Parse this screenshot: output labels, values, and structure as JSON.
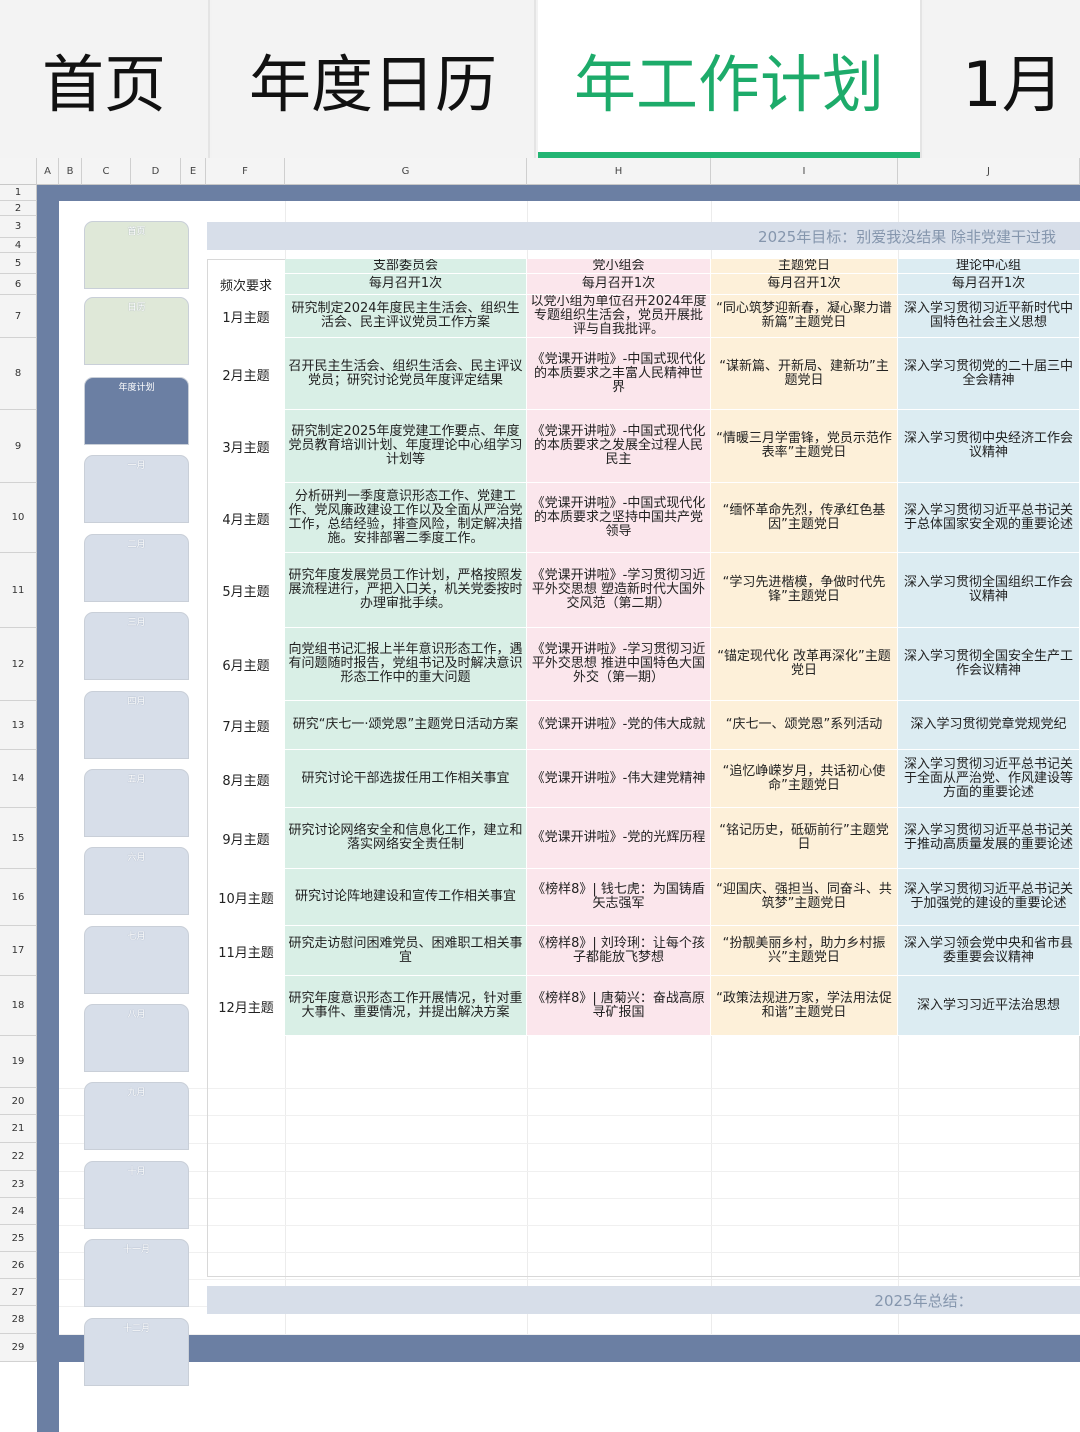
{
  "tabs": [
    {
      "label": "首页",
      "active": false
    },
    {
      "label": "年度日历",
      "active": false
    },
    {
      "label": "年工作计划",
      "active": true
    },
    {
      "label": "1月",
      "active": false
    }
  ],
  "accent_color": "#22b573",
  "column_headers": [
    "A",
    "B",
    "C",
    "D",
    "E",
    "F",
    "G",
    "H",
    "I",
    "J"
  ],
  "row_numbers": [
    "1",
    "2",
    "3",
    "4",
    "5",
    "6",
    "7",
    "8",
    "9",
    "10",
    "11",
    "12",
    "13",
    "14",
    "15",
    "16",
    "17",
    "18",
    "19",
    "20",
    "21",
    "22",
    "23",
    "24",
    "25",
    "26",
    "27",
    "28",
    "29"
  ],
  "nav_buttons": [
    {
      "label": "首页",
      "style": "green"
    },
    {
      "label": "日历",
      "style": "green"
    },
    {
      "label": "年度计划",
      "style": "active"
    },
    {
      "label": "一月",
      "style": "light"
    },
    {
      "label": "二月",
      "style": "light"
    },
    {
      "label": "三月",
      "style": "light"
    },
    {
      "label": "四月",
      "style": "light"
    },
    {
      "label": "五月",
      "style": "light"
    },
    {
      "label": "六月",
      "style": "light"
    },
    {
      "label": "七月",
      "style": "light"
    },
    {
      "label": "八月",
      "style": "light"
    },
    {
      "label": "九月",
      "style": "light"
    },
    {
      "label": "十月",
      "style": "light"
    },
    {
      "label": "十一月",
      "style": "light"
    },
    {
      "label": "十二月",
      "style": "light"
    }
  ],
  "goal_banner": "2025年目标：别爱我没结果 除非党建干过我",
  "summary_banner": "2025年总结：",
  "plan_table": {
    "frequency_label": "频次要求",
    "columns": [
      {
        "name": "支部委员会",
        "frequency": "每月召开1次",
        "color": "#d9efe6"
      },
      {
        "name": "党小组会",
        "frequency": "每月召开1次",
        "color": "#fbe6ec"
      },
      {
        "name": "主题党日",
        "frequency": "每月召开1次",
        "color": "#fdf0d9"
      },
      {
        "name": "理论中心组",
        "frequency": "每月召开1次",
        "color": "#dcecf2"
      }
    ],
    "rows": [
      {
        "month": "1月主题",
        "cells": [
          "研究制定2024年度民主生活会、组织生活会、民主评议党员工作方案",
          "以党小组为单位召开2024年度专题组织生活会，党员开展批评与自我批评。",
          "“同心筑梦迎新春，凝心聚力谱新篇”主题党日",
          "深入学习贯彻习近平新时代中国特色社会主义思想"
        ]
      },
      {
        "month": "2月主题",
        "cells": [
          "召开民主生活会、组织生活会、民主评议党员；研究讨论党员年度评定结果",
          "《党课开讲啦》-中国式现代化的本质要求之丰富人民精神世界",
          "“谋新篇、开新局、建新功”主题党日",
          "深入学习贯彻党的二十届三中全会精神"
        ]
      },
      {
        "month": "3月主题",
        "cells": [
          "研究制定2025年度党建工作要点、年度党员教育培训计划、年度理论中心组学习计划等",
          "《党课开讲啦》-中国式现代化的本质要求之发展全过程人民民主",
          "“情暖三月学雷锋，党员示范作表率”主题党日",
          "深入学习贯彻中央经济工作会议精神"
        ]
      },
      {
        "month": "4月主题",
        "cells": [
          "分析研判一季度意识形态工作、党建工作、党风廉政建设工作以及全面从严治党工作，总结经验，排查风险，制定解决措施。安排部署二季度工作。",
          "《党课开讲啦》-中国式现代化的本质要求之坚持中国共产党领导",
          "“缅怀革命先烈，传承红色基因”主题党日",
          "深入学习贯彻习近平总书记关于总体国家安全观的重要论述"
        ]
      },
      {
        "month": "5月主题",
        "cells": [
          "研究年度发展党员工作计划，严格按照发展流程进行，严把入口关，机关党委按时办理审批手续。",
          "《党课开讲啦》-学习贯彻习近平外交思想 塑造新时代大国外交风范（第二期）",
          "“学习先进楷模，争做时代先锋”主题党日",
          "深入学习贯彻全国组织工作会议精神"
        ]
      },
      {
        "month": "6月主题",
        "cells": [
          "向党组书记汇报上半年意识形态工作，遇有问题随时报告，党组书记及时解决意识形态工作中的重大问题",
          "《党课开讲啦》-学习贯彻习近平外交思想 推进中国特色大国外交（第一期）",
          "“锚定现代化 改革再深化”主题党日",
          "深入学习贯彻全国安全生产工作会议精神"
        ]
      },
      {
        "month": "7月主题",
        "cells": [
          "研究“庆七一·颂党恩”主题党日活动方案",
          "《党课开讲啦》-党的伟大成就",
          "“庆七一、颂党恩”系列活动",
          "深入学习贯彻党章党规党纪"
        ]
      },
      {
        "month": "8月主题",
        "cells": [
          "研究讨论干部选拔任用工作相关事宜",
          "《党课开讲啦》-伟大建党精神",
          "“追忆峥嵘岁月，共话初心使命”主题党日",
          "深入学习贯彻习近平总书记关于全面从严治党、作风建设等方面的重要论述"
        ]
      },
      {
        "month": "9月主题",
        "cells": [
          "研究讨论网络安全和信息化工作，建立和落实网络安全责任制",
          "《党课开讲啦》-党的光辉历程",
          "“铭记历史，砥砺前行”主题党日",
          "深入学习贯彻习近平总书记关于推动高质量发展的重要论述"
        ]
      },
      {
        "month": "10月主题",
        "cells": [
          "研究讨论阵地建设和宣传工作相关事宜",
          "《榜样8》| 钱七虎：为国铸盾 矢志强军",
          "“迎国庆、强担当、同奋斗、共筑梦”主题党日",
          "深入学习贯彻习近平总书记关于加强党的建设的重要论述"
        ]
      },
      {
        "month": "11月主题",
        "cells": [
          "研究走访慰问困难党员、困难职工相关事宜",
          "《榜样8》| 刘玲琍：让每个孩子都能放飞梦想",
          "“扮靓美丽乡村，助力乡村振兴”主题党日",
          "深入学习领会党中央和省市县委重要会议精神"
        ]
      },
      {
        "month": "12月主题",
        "cells": [
          "研究年度意识形态工作开展情况，针对重大事件、重要情况，并提出解决方案",
          "《榜样8》| 唐菊兴：奋战高原 寻矿报国",
          "“政策法规进万家，学法用法促和谐”主题党日",
          "深入学习习近平法治思想"
        ]
      }
    ]
  }
}
